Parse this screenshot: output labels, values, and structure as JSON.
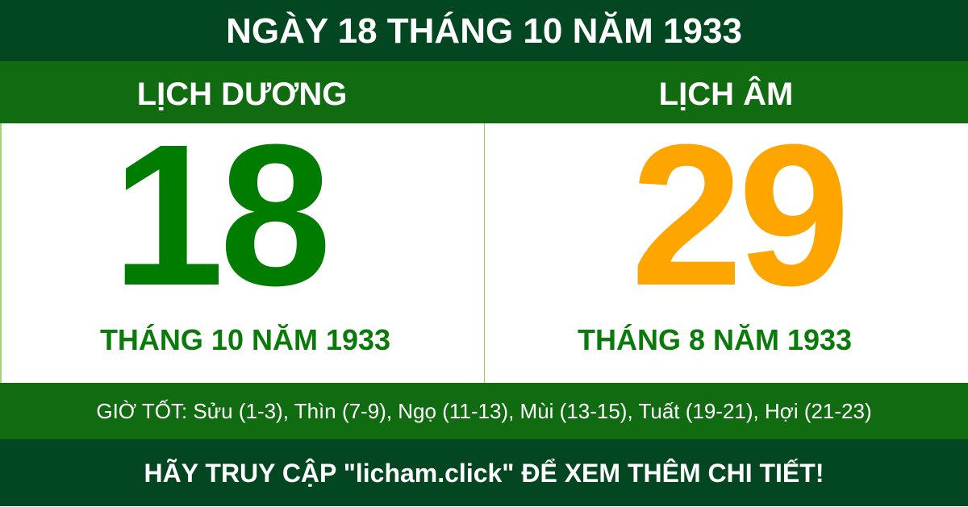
{
  "title": "NGÀY 18 THÁNG 10 NĂM 1933",
  "solar": {
    "label": "LỊCH DƯƠNG",
    "day": "18",
    "month_year": "THÁNG 10 NĂM 1933",
    "color": "#007d00"
  },
  "lunar": {
    "label": "LỊCH ÂM",
    "day": "29",
    "month_year": "THÁNG 8 NĂM 1933",
    "color": "#ffa500"
  },
  "good_hours": "GIỜ TỐT: Sửu (1-3), Thìn (7-9), Ngọ (11-13), Mùi (13-15), Tuất (19-21), Hợi (21-23)",
  "footer": "HÃY TRUY CẬP \"licham.click\" ĐỂ XEM THÊM CHI TIẾT!",
  "colors": {
    "header_bg": "#034722",
    "band_bg": "#116b11"
  }
}
